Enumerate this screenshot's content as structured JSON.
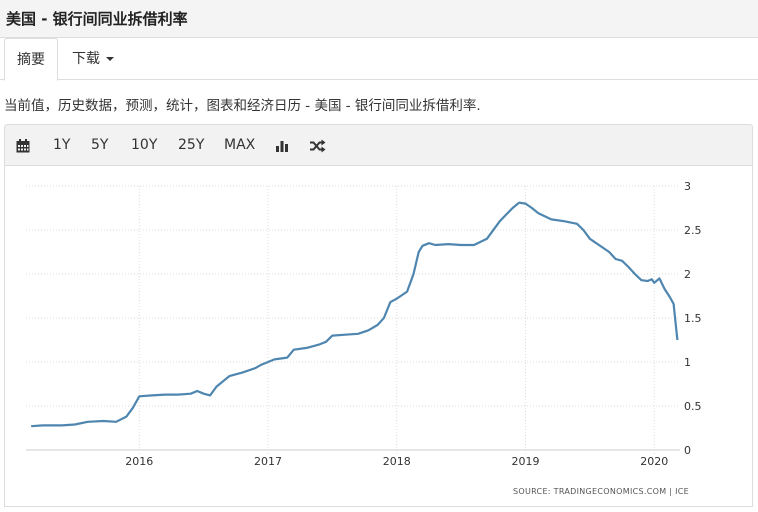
{
  "header": {
    "title": "美国 - 银行间同业拆借利率"
  },
  "tabs": [
    {
      "label": "摘要"
    },
    {
      "label": "下载"
    }
  ],
  "description": "当前值，历史数据，预测，统计，图表和经济日历 - 美国 - 银行间同业拆借利率.",
  "toolbar": {
    "icons": [
      "calendar-icon",
      "bar-chart-icon",
      "shuffle-icon"
    ],
    "ranges": [
      "1Y",
      "5Y",
      "10Y",
      "25Y",
      "MAX"
    ]
  },
  "chart_data": {
    "type": "line",
    "title": "",
    "xlabel": "",
    "ylabel": "",
    "xlim": [
      2015.12,
      2020.2
    ],
    "ylim": [
      0,
      3
    ],
    "x_ticks": [
      {
        "value": 2016,
        "label": "2016"
      },
      {
        "value": 2017,
        "label": "2017"
      },
      {
        "value": 2018,
        "label": "2018"
      },
      {
        "value": 2019,
        "label": "2019"
      },
      {
        "value": 2020,
        "label": "2020"
      }
    ],
    "y_ticks": [
      {
        "value": 0,
        "label": "0"
      },
      {
        "value": 0.5,
        "label": "0.5"
      },
      {
        "value": 1,
        "label": "1"
      },
      {
        "value": 1.5,
        "label": "1.5"
      },
      {
        "value": 2,
        "label": "2"
      },
      {
        "value": 2.5,
        "label": "2.5"
      },
      {
        "value": 3,
        "label": "3"
      }
    ],
    "grid": "horizontal-dotted",
    "line_color": "#4f86b0",
    "source": "SOURCE: TRADINGECONOMICS.COM  |  ICE",
    "series": [
      {
        "x": [
          2015.16,
          2015.25,
          2015.4,
          2015.5,
          2015.6,
          2015.72,
          2015.82,
          2015.9,
          2015.95,
          2016.0,
          2016.1,
          2016.2,
          2016.3,
          2016.4,
          2016.45,
          2016.5,
          2016.55,
          2016.6,
          2016.7,
          2016.8,
          2016.9,
          2016.95,
          2017.0,
          2017.05,
          2017.15,
          2017.2,
          2017.3,
          2017.4,
          2017.45,
          2017.5,
          2017.6,
          2017.7,
          2017.78,
          2017.85,
          2017.9,
          2017.95,
          2018.0,
          2018.08,
          2018.13,
          2018.17,
          2018.2,
          2018.25,
          2018.3,
          2018.4,
          2018.5,
          2018.6,
          2018.7,
          2018.8,
          2018.9,
          2018.95,
          2019.0,
          2019.05,
          2019.1,
          2019.2,
          2019.3,
          2019.4,
          2019.45,
          2019.5,
          2019.6,
          2019.65,
          2019.7,
          2019.75,
          2019.8,
          2019.85,
          2019.9,
          2019.95,
          2019.98,
          2020.0,
          2020.04,
          2020.08,
          2020.12,
          2020.15,
          2020.18
        ],
        "y": [
          0.27,
          0.28,
          0.28,
          0.29,
          0.32,
          0.33,
          0.32,
          0.38,
          0.48,
          0.61,
          0.62,
          0.63,
          0.63,
          0.64,
          0.67,
          0.64,
          0.62,
          0.72,
          0.84,
          0.88,
          0.93,
          0.97,
          1.0,
          1.03,
          1.05,
          1.14,
          1.16,
          1.2,
          1.23,
          1.3,
          1.31,
          1.32,
          1.36,
          1.42,
          1.5,
          1.68,
          1.72,
          1.8,
          2.0,
          2.25,
          2.32,
          2.35,
          2.33,
          2.34,
          2.33,
          2.33,
          2.4,
          2.6,
          2.75,
          2.81,
          2.8,
          2.75,
          2.69,
          2.62,
          2.6,
          2.57,
          2.5,
          2.4,
          2.3,
          2.25,
          2.17,
          2.15,
          2.08,
          2.0,
          1.93,
          1.92,
          1.94,
          1.9,
          1.95,
          1.83,
          1.74,
          1.66,
          1.25
        ]
      }
    ]
  }
}
